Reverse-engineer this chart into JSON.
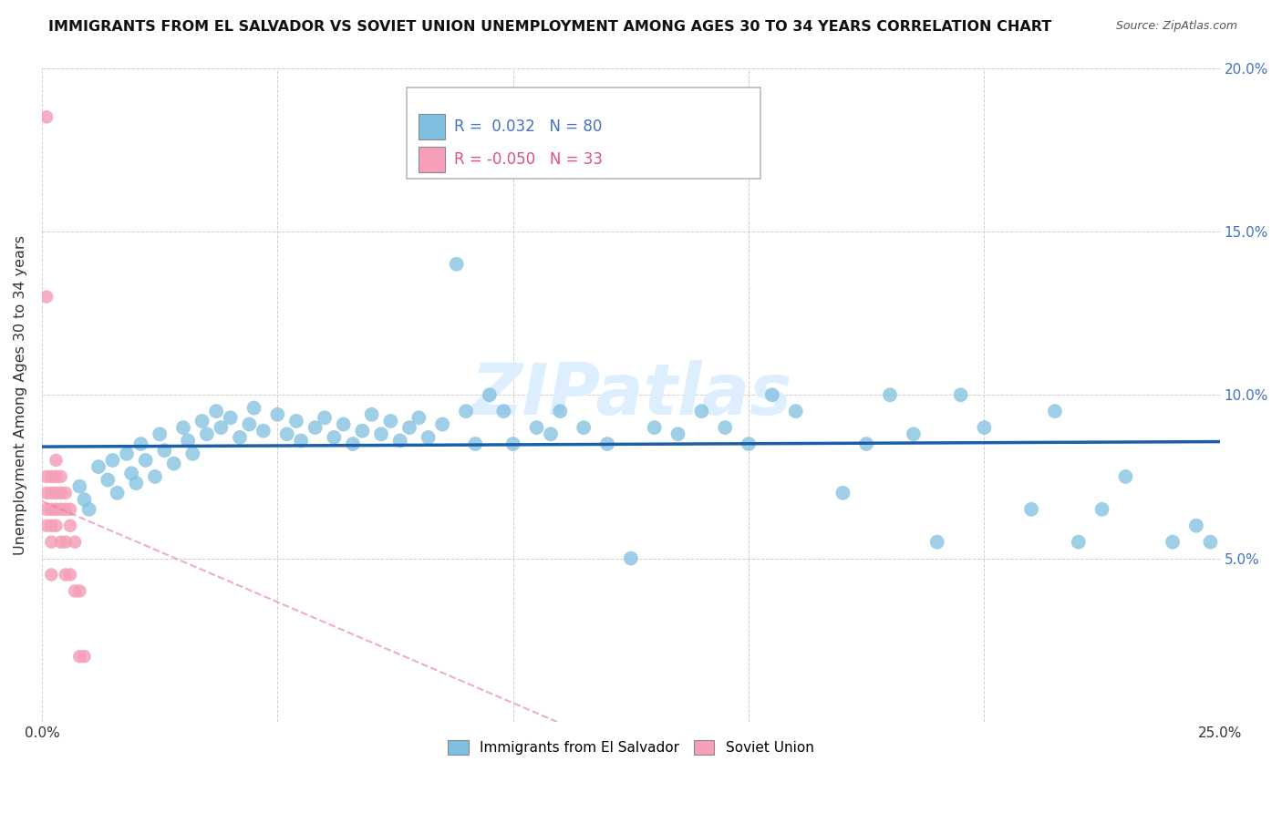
{
  "title": "IMMIGRANTS FROM EL SALVADOR VS SOVIET UNION UNEMPLOYMENT AMONG AGES 30 TO 34 YEARS CORRELATION CHART",
  "source": "Source: ZipAtlas.com",
  "ylabel": "Unemployment Among Ages 30 to 34 years",
  "xlim": [
    0,
    0.25
  ],
  "ylim": [
    0,
    0.2
  ],
  "xticks": [
    0.0,
    0.05,
    0.1,
    0.15,
    0.2,
    0.25
  ],
  "yticks": [
    0.0,
    0.05,
    0.1,
    0.15,
    0.2
  ],
  "xtick_labels": [
    "0.0%",
    "",
    "",
    "",
    "",
    "25.0%"
  ],
  "ytick_labels": [
    "",
    "",
    "",
    "",
    ""
  ],
  "right_ytick_labels": [
    "",
    "5.0%",
    "10.0%",
    "15.0%",
    "20.0%"
  ],
  "right_yticks": [
    0.0,
    0.05,
    0.1,
    0.15,
    0.2
  ],
  "legend_el_salvador": "Immigrants from El Salvador",
  "legend_soviet": "Soviet Union",
  "R_el_salvador": 0.032,
  "N_el_salvador": 80,
  "R_soviet": -0.05,
  "N_soviet": 33,
  "el_salvador_color": "#7fbfdf",
  "soviet_color": "#f5a0b8",
  "trend_el_salvador_color": "#1a5fa8",
  "trend_soviet_color": "#e8779a",
  "watermark": "ZIPatlas",
  "watermark_color": "#ddeeff",
  "el_salvador_x": [
    0.008,
    0.009,
    0.01,
    0.012,
    0.014,
    0.015,
    0.016,
    0.018,
    0.019,
    0.02,
    0.021,
    0.022,
    0.024,
    0.025,
    0.026,
    0.028,
    0.03,
    0.031,
    0.032,
    0.034,
    0.035,
    0.037,
    0.038,
    0.04,
    0.042,
    0.044,
    0.045,
    0.047,
    0.05,
    0.052,
    0.054,
    0.055,
    0.058,
    0.06,
    0.062,
    0.064,
    0.066,
    0.068,
    0.07,
    0.072,
    0.074,
    0.076,
    0.078,
    0.08,
    0.082,
    0.085,
    0.088,
    0.09,
    0.092,
    0.095,
    0.098,
    0.1,
    0.105,
    0.108,
    0.11,
    0.115,
    0.12,
    0.125,
    0.13,
    0.135,
    0.14,
    0.145,
    0.15,
    0.155,
    0.16,
    0.17,
    0.175,
    0.18,
    0.185,
    0.19,
    0.195,
    0.2,
    0.21,
    0.215,
    0.22,
    0.225,
    0.23,
    0.24,
    0.245,
    0.248
  ],
  "el_salvador_y": [
    0.072,
    0.068,
    0.065,
    0.078,
    0.074,
    0.08,
    0.07,
    0.082,
    0.076,
    0.073,
    0.085,
    0.08,
    0.075,
    0.088,
    0.083,
    0.079,
    0.09,
    0.086,
    0.082,
    0.092,
    0.088,
    0.095,
    0.09,
    0.093,
    0.087,
    0.091,
    0.096,
    0.089,
    0.094,
    0.088,
    0.092,
    0.086,
    0.09,
    0.093,
    0.087,
    0.091,
    0.085,
    0.089,
    0.094,
    0.088,
    0.092,
    0.086,
    0.09,
    0.093,
    0.087,
    0.091,
    0.14,
    0.095,
    0.085,
    0.1,
    0.095,
    0.085,
    0.09,
    0.088,
    0.095,
    0.09,
    0.085,
    0.05,
    0.09,
    0.088,
    0.095,
    0.09,
    0.085,
    0.1,
    0.095,
    0.07,
    0.085,
    0.1,
    0.088,
    0.055,
    0.1,
    0.09,
    0.065,
    0.095,
    0.055,
    0.065,
    0.075,
    0.055,
    0.06,
    0.055
  ],
  "soviet_x": [
    0.001,
    0.001,
    0.001,
    0.001,
    0.001,
    0.001,
    0.002,
    0.002,
    0.002,
    0.002,
    0.002,
    0.002,
    0.003,
    0.003,
    0.003,
    0.003,
    0.003,
    0.004,
    0.004,
    0.004,
    0.004,
    0.005,
    0.005,
    0.005,
    0.005,
    0.006,
    0.006,
    0.006,
    0.007,
    0.007,
    0.008,
    0.008,
    0.009
  ],
  "soviet_y": [
    0.185,
    0.13,
    0.075,
    0.07,
    0.065,
    0.06,
    0.075,
    0.07,
    0.065,
    0.06,
    0.055,
    0.045,
    0.08,
    0.075,
    0.07,
    0.065,
    0.06,
    0.075,
    0.07,
    0.065,
    0.055,
    0.07,
    0.065,
    0.055,
    0.045,
    0.065,
    0.06,
    0.045,
    0.055,
    0.04,
    0.04,
    0.02,
    0.02
  ]
}
